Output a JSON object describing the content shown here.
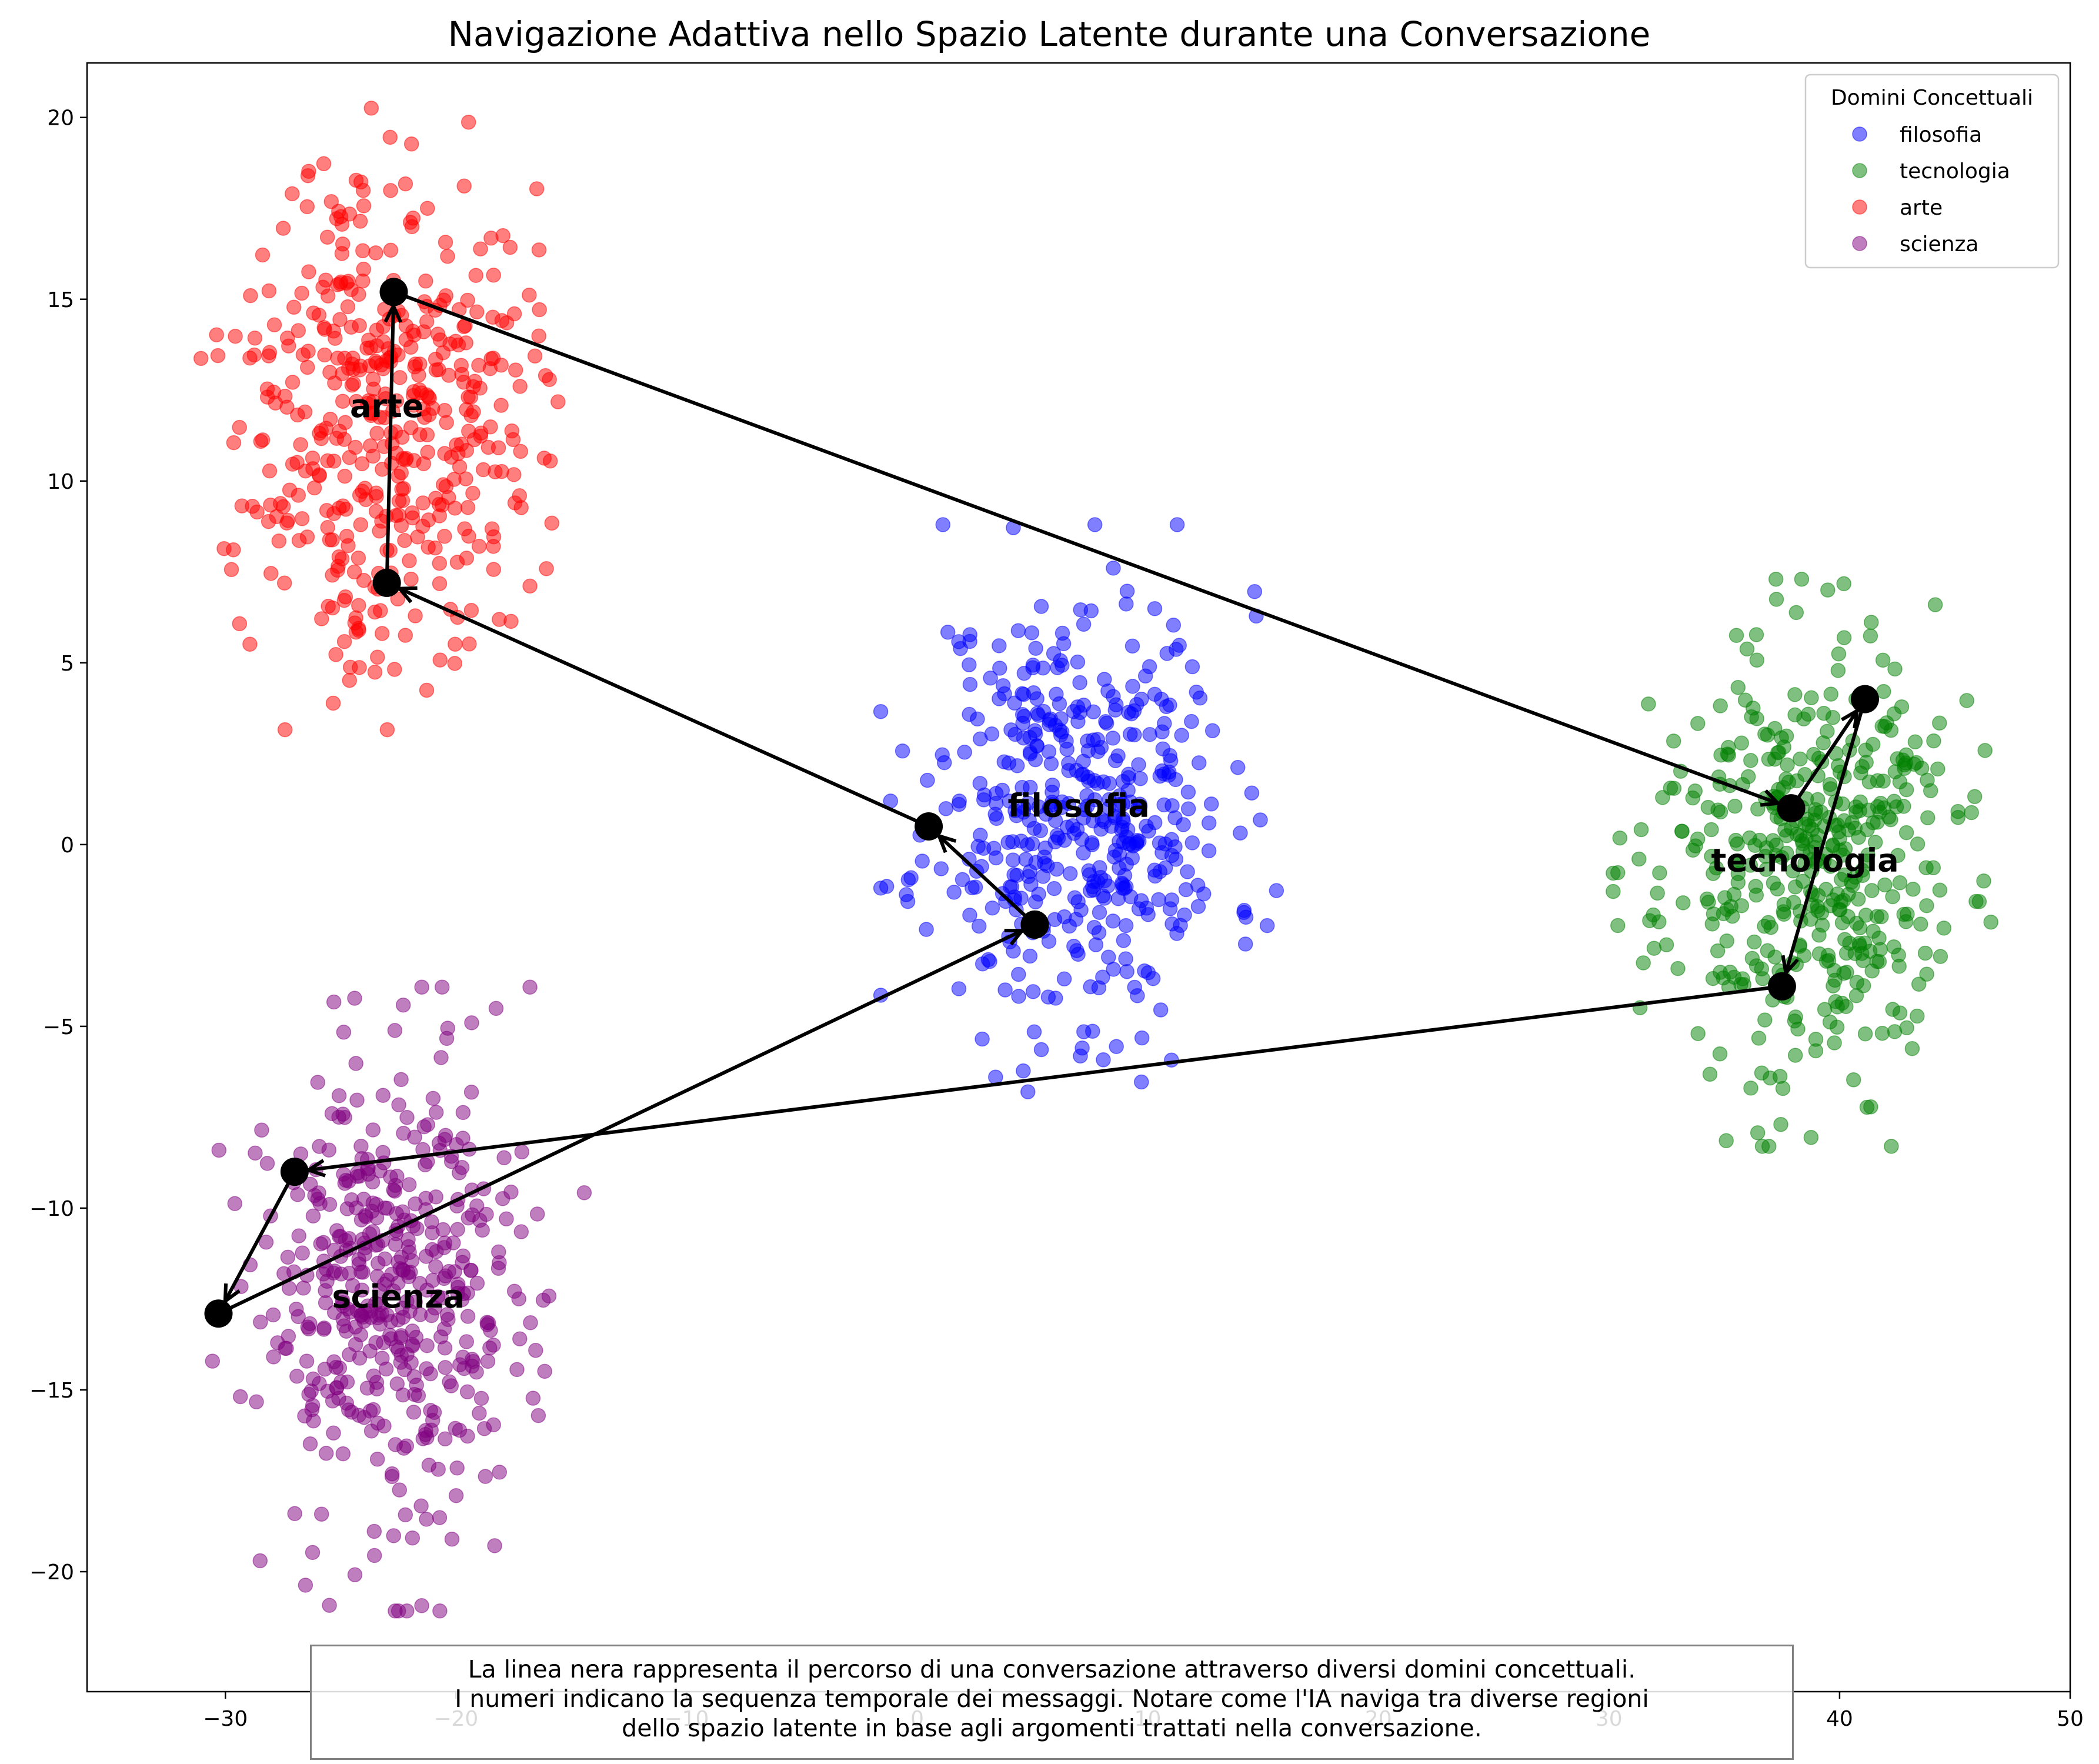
{
  "chart_data": {
    "type": "scatter",
    "title": "Navigazione Adattiva nello Spazio Latente durante una Conversazione",
    "xlabel": "",
    "ylabel": "",
    "xlim": [
      -36,
      50
    ],
    "ylim": [
      -23.3,
      21.5
    ],
    "xticks": [
      -30,
      -20,
      -10,
      0,
      10,
      20,
      30,
      40,
      50
    ],
    "xtick_labels": [
      "−30",
      "−20",
      "−10",
      "0",
      "10",
      "20",
      "30",
      "40",
      "50"
    ],
    "yticks": [
      -20,
      -15,
      -10,
      -5,
      0,
      5,
      10,
      15,
      20
    ],
    "ytick_labels": [
      "−20",
      "−15",
      "−10",
      "−5",
      "0",
      "5",
      "10",
      "15",
      "20"
    ],
    "grid": false,
    "legend": {
      "title": "Domini Concettuali",
      "placement": "top-right",
      "entries": [
        "filosofia",
        "tecnologia",
        "arte",
        "scienza"
      ]
    },
    "series": [
      {
        "name": "filosofia",
        "color": "#0000ff",
        "alpha": 0.5,
        "center": [
          7,
          1
        ],
        "spread": [
          3.3,
          3.0
        ],
        "count": 450,
        "seed": 11
      },
      {
        "name": "tecnologia",
        "color": "#008000",
        "alpha": 0.5,
        "center": [
          38.5,
          -0.5
        ],
        "spread": [
          3.2,
          3.0
        ],
        "count": 450,
        "seed": 23
      },
      {
        "name": "arte",
        "color": "#ff0000",
        "alpha": 0.5,
        "center": [
          -23,
          12
        ],
        "spread": [
          3.1,
          3.4
        ],
        "count": 450,
        "seed": 37
      },
      {
        "name": "scienza",
        "color": "#800080",
        "alpha": 0.5,
        "center": [
          -22.5,
          -12.5
        ],
        "spread": [
          3.1,
          3.3
        ],
        "count": 450,
        "seed": 53
      }
    ],
    "cluster_labels": [
      {
        "text": "filosofia",
        "x": 7,
        "y": 1
      },
      {
        "text": "tecnologia",
        "x": 38.5,
        "y": -0.5
      },
      {
        "text": "arte",
        "x": -23,
        "y": 12
      },
      {
        "text": "scienza",
        "x": -22.5,
        "y": -12.5
      }
    ],
    "path": {
      "color": "#000000",
      "points": [
        [
          5.1,
          -2.2
        ],
        [
          0.5,
          0.5
        ],
        [
          -23,
          7.2
        ],
        [
          -22.7,
          15.2
        ],
        [
          37.9,
          1.0
        ],
        [
          41.1,
          4.0
        ],
        [
          37.5,
          -3.9
        ],
        [
          -27,
          -9.0
        ],
        [
          -30.3,
          -12.9
        ],
        [
          5.1,
          -2.2
        ]
      ]
    },
    "caption_lines": [
      "La linea nera rappresenta il percorso di una conversazione attraverso diversi domini concettuali.",
      "I numeri indicano la sequenza temporale dei messaggi. Notare come l'IA naviga tra diverse regioni",
      "dello spazio latente in base agli argomenti trattati nella conversazione."
    ]
  }
}
